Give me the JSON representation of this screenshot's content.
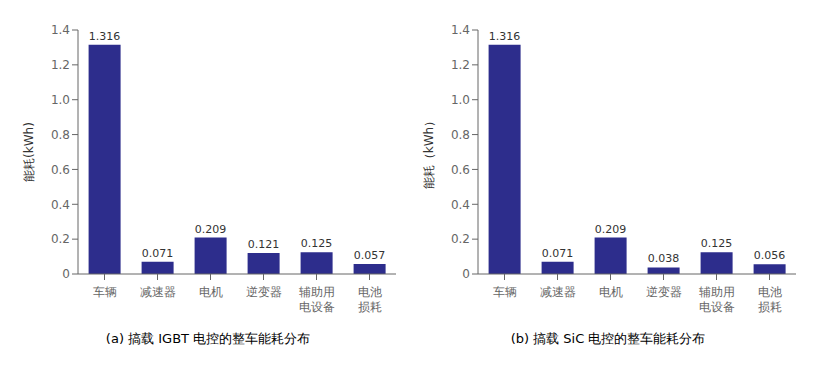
{
  "chart_data": [
    {
      "type": "bar",
      "title": "(a) 搞载 IGBT 电控的整车能耗分布",
      "ylabel": "能耗(kWh)",
      "categories": [
        "车辆",
        "减速器",
        "电机",
        "逆变器",
        "辅助用\n电设备",
        "电池\n损耗"
      ],
      "values": [
        1.316,
        0.071,
        0.209,
        0.121,
        0.125,
        0.057
      ],
      "color": "#2d2d8c",
      "ylim": [
        0,
        1.4
      ],
      "yticks": [
        0,
        0.2,
        0.4,
        0.6,
        0.8,
        {
          "value": 1.0,
          "label": "1.0"
        },
        1.2,
        1.4
      ],
      "grid": false,
      "data_labels": true
    },
    {
      "type": "bar",
      "title": "(b) 搞载 SiC 电控的整车能耗分布",
      "ylabel": "能耗（kWh）",
      "categories": [
        "车辆",
        "减速器",
        "电机",
        "逆变器",
        "辅助用\n电设备",
        "电池\n损耗"
      ],
      "values": [
        1.316,
        0.071,
        0.209,
        0.038,
        0.125,
        0.056
      ],
      "color": "#2d2d8c",
      "ylim": [
        0,
        1.4
      ],
      "yticks": [
        0,
        0.2,
        0.4,
        0.6,
        0.8,
        {
          "value": 1.0,
          "label": "1.0"
        },
        1.2,
        1.4
      ],
      "grid": false,
      "data_labels": true
    }
  ]
}
